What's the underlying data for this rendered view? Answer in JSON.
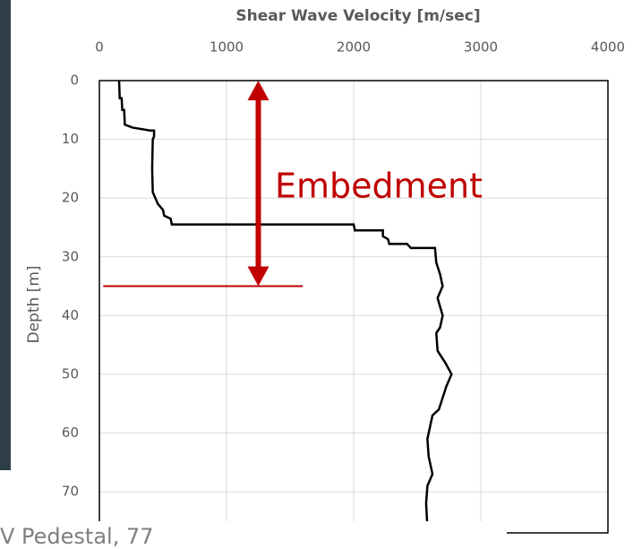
{
  "chart_data": {
    "type": "line",
    "title": "Shear Wave Velocity [m/sec]",
    "y_label": "Depth [m]",
    "x": [
      155,
      160,
      175,
      180,
      195,
      200,
      260,
      400,
      430,
      430,
      420,
      415,
      420,
      440,
      460,
      500,
      510,
      560,
      570,
      2000,
      2010,
      2230,
      2230,
      2270,
      2280,
      2420,
      2450,
      2640,
      2650,
      2680,
      2700,
      2660,
      2700,
      2680,
      2650,
      2660,
      2720,
      2770,
      2730,
      2700,
      2670,
      2620,
      2600,
      2580,
      2590,
      2620,
      2580,
      2570,
      2580
    ],
    "y": [
      0,
      3,
      3,
      5,
      5,
      7.5,
      8,
      8.5,
      8.5,
      9.5,
      10,
      15,
      19,
      20,
      21,
      22,
      23,
      23.5,
      24.5,
      24.5,
      25.5,
      25.5,
      26.5,
      27,
      27.8,
      27.8,
      28.5,
      28.5,
      31,
      33,
      35,
      37,
      40,
      42,
      43,
      46,
      48,
      50,
      52,
      54,
      56,
      57,
      59,
      61,
      64,
      67,
      69,
      72,
      76
    ],
    "color": "#000000",
    "xlim": [
      0,
      4000
    ],
    "xticks": [
      0,
      1000,
      2000,
      3000,
      4000
    ],
    "ylim": [
      0,
      77
    ],
    "yticks": [
      0,
      10,
      20,
      30,
      40,
      50,
      60,
      70
    ],
    "y_inverted": true,
    "grid": true,
    "annotation": {
      "text": "Embedment",
      "color": "#c00000",
      "depth": 35,
      "arrow_x": 1250,
      "line_x": [
        30,
        1600
      ]
    },
    "footer": "V Pedestal, 77"
  }
}
